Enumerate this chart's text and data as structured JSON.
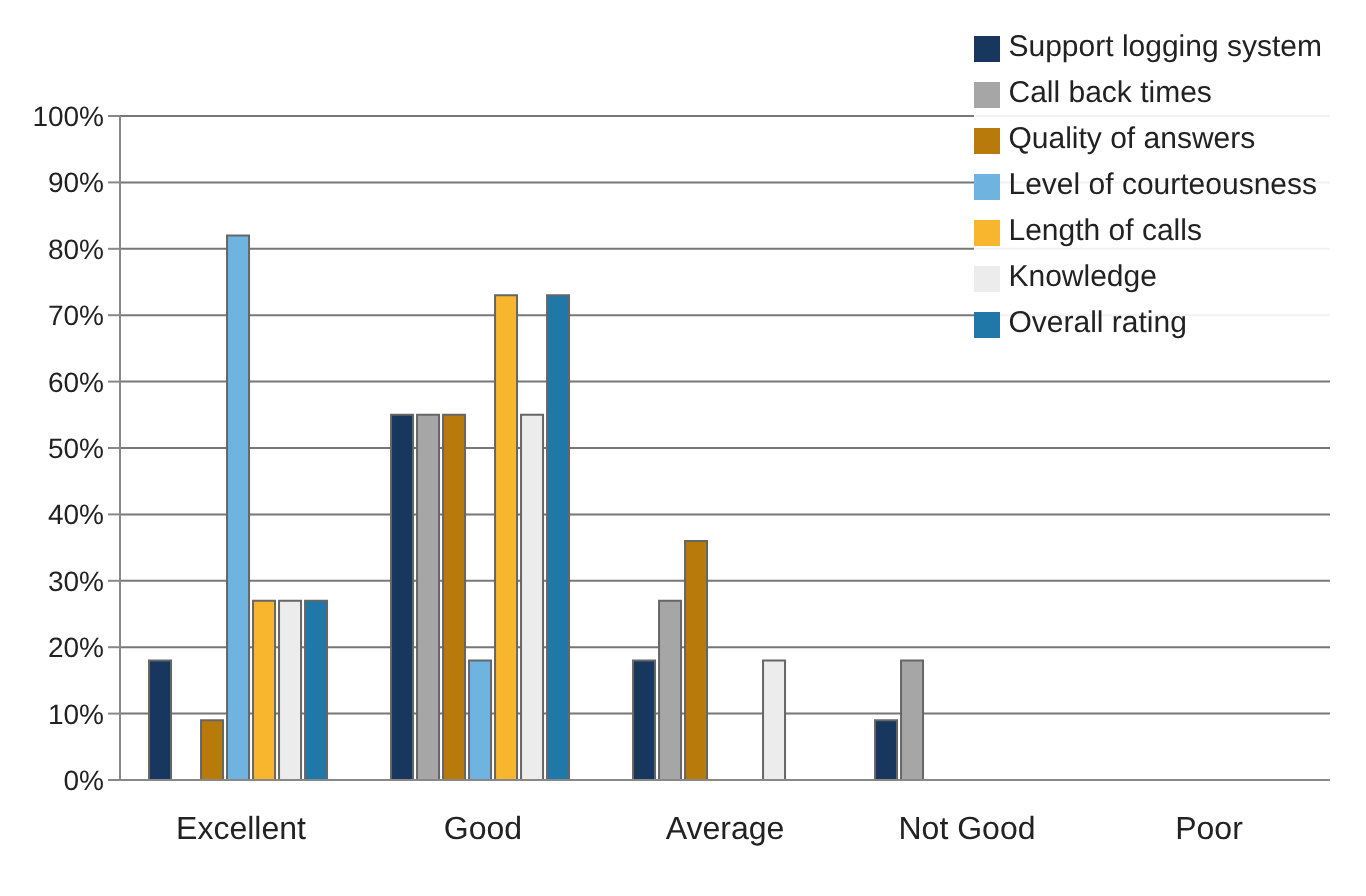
{
  "chart_data": {
    "type": "bar",
    "categories": [
      "Excellent",
      "Good",
      "Average",
      "Not Good",
      "Poor"
    ],
    "series": [
      {
        "name": "Support logging system",
        "color": "#17375e",
        "values": [
          18,
          55,
          18,
          9,
          0
        ]
      },
      {
        "name": "Call back times",
        "color": "#a6a6a6",
        "values": [
          0,
          55,
          27,
          18,
          0
        ]
      },
      {
        "name": "Quality of answers",
        "color": "#b87a0a",
        "values": [
          9,
          55,
          36,
          0,
          0
        ]
      },
      {
        "name": "Level of courteousness",
        "color": "#6fb3e0",
        "values": [
          82,
          18,
          0,
          0,
          0
        ]
      },
      {
        "name": "Length of calls",
        "color": "#f8b52e",
        "values": [
          27,
          73,
          0,
          0,
          0
        ]
      },
      {
        "name": "Knowledge",
        "color": "#ececec",
        "values": [
          27,
          55,
          18,
          0,
          0
        ]
      },
      {
        "name": "Overall rating",
        "color": "#1f78a8",
        "values": [
          27,
          73,
          0,
          0,
          0
        ]
      }
    ],
    "ylim": [
      0,
      100
    ],
    "yticks": [
      {
        "value": 0,
        "label": "0%"
      },
      {
        "value": 10,
        "label": "10%"
      },
      {
        "value": 20,
        "label": "20%"
      },
      {
        "value": 30,
        "label": "30%"
      },
      {
        "value": 40,
        "label": "40%"
      },
      {
        "value": 50,
        "label": "50%"
      },
      {
        "value": 60,
        "label": "60%"
      },
      {
        "value": 70,
        "label": "70%"
      },
      {
        "value": 80,
        "label": "80%"
      },
      {
        "value": 90,
        "label": "90%"
      },
      {
        "value": 100,
        "label": "100%"
      }
    ],
    "grid": "y",
    "legend": "top right"
  }
}
